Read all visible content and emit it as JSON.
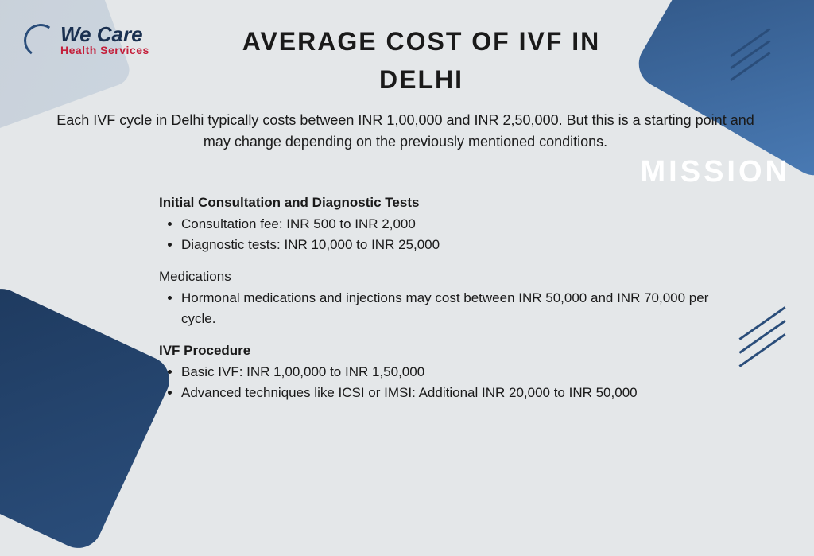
{
  "logo": {
    "line1": "We Care",
    "line2": "Health Services"
  },
  "title": "AVERAGE COST OF IVF IN DELHI",
  "intro": "Each IVF cycle in Delhi typically costs between INR 1,00,000 and INR 2,50,000. But this is a starting point and may change depending on the previously mentioned conditions.",
  "watermark": "MISSION",
  "sections": [
    {
      "title": "Initial Consultation and Diagnostic Tests",
      "bold": true,
      "items": [
        "Consultation fee: INR 500 to INR 2,000",
        "Diagnostic tests: INR 10,000 to INR 25,000"
      ]
    },
    {
      "title": "Medications",
      "bold": false,
      "items": [
        "Hormonal medications and injections may cost between INR 50,000 and INR 70,000 per cycle."
      ]
    },
    {
      "title": "IVF Procedure",
      "bold": true,
      "items": [
        "Basic IVF: INR 1,00,000 to INR 1,50,000",
        "Advanced techniques like ICSI or IMSI: Additional INR 20,000 to INR 50,000"
      ]
    }
  ],
  "colors": {
    "background": "#e4e7e9",
    "accent_dark": "#1e3a5f",
    "accent": "#2a4d7a",
    "logo_red": "#c41e3a",
    "text": "#1a1a1a",
    "watermark": "#ffffff"
  }
}
